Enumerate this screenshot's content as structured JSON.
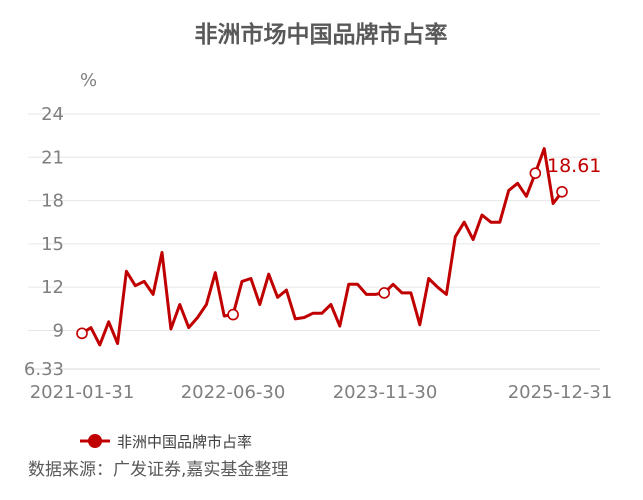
{
  "chart_data": {
    "type": "line",
    "title": "非洲市场中国品牌市占率",
    "unit_label": "%",
    "y_ticks": [
      "24",
      "21",
      "18",
      "15",
      "12",
      "9",
      "6.33"
    ],
    "y_tick_values": [
      24,
      21,
      18,
      15,
      12,
      9,
      6.33
    ],
    "ylim": [
      6.33,
      24
    ],
    "x_tick_labels": [
      "2021-01-31",
      "2022-06-30",
      "2023-11-30",
      "2025-12-31"
    ],
    "x_tick_indices": [
      0,
      17,
      34,
      59
    ],
    "grid": true,
    "legend_position": "bottom-left",
    "series": [
      {
        "name": "非洲中国品牌市占率",
        "color": "#c00000",
        "values": [
          8.8,
          9.2,
          8.0,
          9.6,
          8.1,
          13.1,
          12.1,
          12.4,
          11.5,
          14.4,
          9.1,
          10.8,
          9.2,
          9.9,
          10.8,
          13.0,
          10.0,
          10.1,
          12.4,
          12.6,
          10.8,
          12.9,
          11.3,
          11.8,
          9.8,
          9.9,
          10.2,
          10.2,
          10.8,
          9.3,
          12.2,
          12.2,
          11.5,
          11.5,
          11.6,
          12.2,
          11.6,
          11.6,
          9.4,
          12.6,
          12.0,
          11.5,
          15.5,
          16.5,
          15.3,
          17.0,
          16.5,
          16.5,
          18.7,
          19.2,
          18.3,
          19.9,
          21.6,
          17.8,
          18.61
        ],
        "x_index": [
          0,
          1,
          2,
          3,
          4,
          5,
          6,
          7,
          8,
          9,
          10,
          11,
          12,
          13,
          14,
          15,
          16,
          17,
          18,
          19,
          20,
          21,
          22,
          23,
          24,
          25,
          26,
          27,
          28,
          29,
          30,
          31,
          32,
          33,
          34,
          35,
          36,
          37,
          38,
          39,
          40,
          41,
          42,
          43,
          44,
          45,
          46,
          47,
          48,
          49,
          50,
          51,
          52,
          53,
          54
        ],
        "marker_indices": [
          0,
          17,
          34,
          51,
          54
        ],
        "last_value_label": "18.61"
      }
    ]
  },
  "source_text": "数据来源：广发证券,嘉实基金整理"
}
